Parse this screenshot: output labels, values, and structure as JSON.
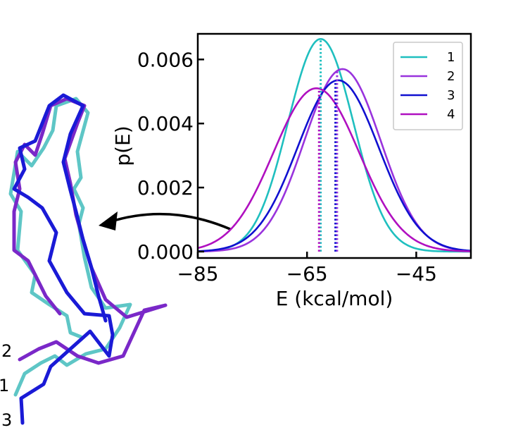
{
  "chart_data": {
    "type": "line",
    "xlabel": "E (kcal/mol)",
    "ylabel": "p(E)",
    "xlim": [
      -85,
      -35
    ],
    "ylim": [
      -0.0002,
      0.0068
    ],
    "xticks": [
      -85,
      -65,
      -45
    ],
    "xtick_labels": [
      "−85",
      "−65",
      "−45"
    ],
    "yticks": [
      0.0,
      0.002,
      0.004,
      0.006
    ],
    "ytick_labels": [
      "0.000",
      "0.002",
      "0.004",
      "0.006"
    ],
    "grid": false,
    "legend_position": "top-right",
    "series": [
      {
        "name": "1",
        "color": "#1fbfbf",
        "mean": -62.5,
        "sd": 6.0,
        "peak": 0.00664,
        "mean_line": -62.5
      },
      {
        "name": "2",
        "color": "#9933dd",
        "mean": -58.5,
        "sd": 7.0,
        "peak": 0.0057,
        "mean_line": -59.5
      },
      {
        "name": "3",
        "color": "#1010d0",
        "mean": -59.3,
        "sd": 7.45,
        "peak": 0.00535,
        "mean_line": -59.8
      },
      {
        "name": "4",
        "color": "#b010c0",
        "mean": -63.3,
        "sd": 7.85,
        "peak": 0.0051,
        "mean_line": -62.8
      }
    ]
  },
  "inset": {
    "chain_labels": [
      "2",
      "1",
      "3"
    ],
    "chains": [
      {
        "name": "1",
        "color": "#5ec6c6"
      },
      {
        "name": "2",
        "color": "#7a28c8"
      },
      {
        "name": "3",
        "color": "#1a1ad6"
      }
    ]
  }
}
